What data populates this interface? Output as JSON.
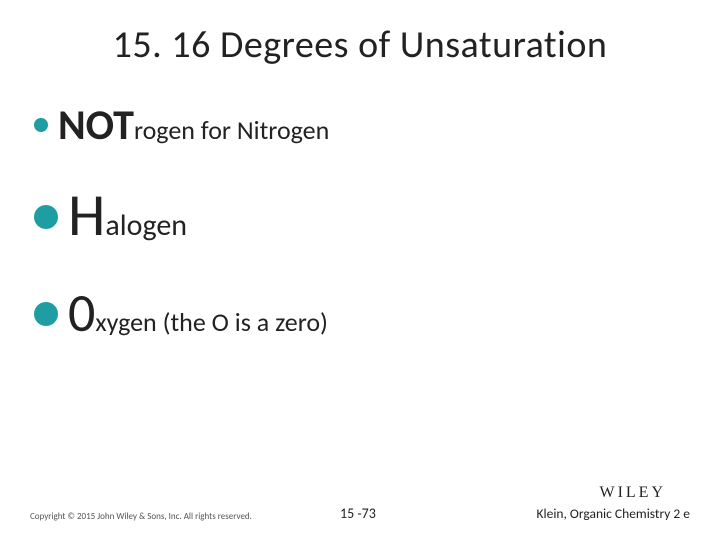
{
  "title": "15. 16 Degrees of Unsaturation",
  "bullets": {
    "line1": {
      "big": "NOT",
      "small": "rogen for Nitrogen",
      "bullet_color": "#1e9da2"
    },
    "line2": {
      "big": "H",
      "small": "alogen",
      "bullet_color": "#1e9da2"
    },
    "line3": {
      "big": "0",
      "small": "xygen (the O is a zero)",
      "bullet_color": "#1e9da2"
    }
  },
  "footer": {
    "copyright": "Copyright © 2015 John Wiley & Sons, Inc. All rights reserved.",
    "pagenum": "15 -73",
    "logo": "WILEY",
    "booktitle": "Klein, Organic Chemistry 2 e"
  },
  "colors": {
    "text": "#222222",
    "accent": "#1e9da2",
    "background": "#ffffff"
  }
}
